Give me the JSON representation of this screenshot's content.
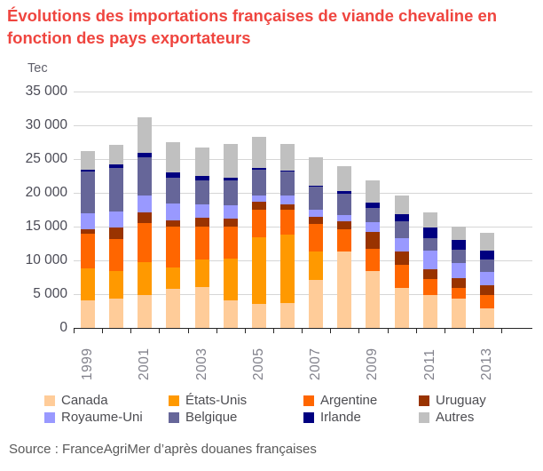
{
  "title": "Évolutions des importations françaises de viande chevaline en fonction des pays exportateurs",
  "title_lines": [
    "Évolutions des importations françaises de viande chevaline en",
    "fonction des pays exportateurs"
  ],
  "source": "Source : FranceAgriMer d’après douanes françaises",
  "colors": {
    "title": "#ef453f",
    "gridline": "#d6d6d6",
    "axis": "#262626"
  },
  "chart_data": {
    "type": "bar",
    "stacked": true,
    "title": "Évolutions des importations françaises de viande chevaline en fonction des pays exportateurs",
    "ylabel": "Tec",
    "xlabel": "",
    "ylim": [
      0,
      35000
    ],
    "grid": true,
    "legend_position": "bottom",
    "yticks": [
      {
        "value": 0,
        "label": "0"
      },
      {
        "value": 5000,
        "label": "5 000"
      },
      {
        "value": 10000,
        "label": "10 000"
      },
      {
        "value": 15000,
        "label": "15 000"
      },
      {
        "value": 20000,
        "label": "20 000"
      },
      {
        "value": 25000,
        "label": "25 000"
      },
      {
        "value": 30000,
        "label": "30 000"
      },
      {
        "value": 35000,
        "label": "35 000"
      }
    ],
    "categories": [
      "1999",
      "2000",
      "2001",
      "2002",
      "2003",
      "2004",
      "2005",
      "2006",
      "2007",
      "2008",
      "2009",
      "2010",
      "2011",
      "2012",
      "2013"
    ],
    "x_tick_labels": [
      "1999",
      "2001",
      "2003",
      "2005",
      "2007",
      "2009",
      "2011",
      "2013"
    ],
    "series": [
      {
        "name": "Canada",
        "color": "#FFCC99",
        "values": [
          4100,
          4350,
          4850,
          5750,
          6100,
          4100,
          3550,
          3650,
          7100,
          11300,
          8350,
          5950,
          4800,
          4350,
          2850
        ]
      },
      {
        "name": "États-Unis",
        "color": "#FF9900",
        "values": [
          4650,
          4000,
          4900,
          3150,
          4000,
          6200,
          9900,
          10100,
          4150,
          0,
          0,
          0,
          0,
          0,
          0
        ]
      },
      {
        "name": "Argentine",
        "color": "#FF6600",
        "values": [
          5250,
          4800,
          5800,
          6050,
          4900,
          4650,
          4000,
          3700,
          4150,
          3250,
          3350,
          3450,
          2450,
          1500,
          1950
        ]
      },
      {
        "name": "Uruguay",
        "color": "#993300",
        "values": [
          550,
          1650,
          1500,
          1000,
          1300,
          1200,
          1200,
          900,
          1050,
          1200,
          2450,
          1900,
          1450,
          1550,
          1450
        ]
      },
      {
        "name": "Royaume-Uni",
        "color": "#9999FF",
        "values": [
          2450,
          2450,
          2550,
          2450,
          2050,
          1950,
          1000,
          1200,
          1100,
          1000,
          1500,
          2050,
          2700,
          2250,
          2000
        ]
      },
      {
        "name": "Belgique",
        "color": "#666699",
        "values": [
          6100,
          6400,
          5700,
          3850,
          3550,
          3800,
          3800,
          3650,
          3400,
          3150,
          2100,
          2400,
          1850,
          1900,
          1900
        ]
      },
      {
        "name": "Irlande",
        "color": "#000080",
        "values": [
          300,
          600,
          650,
          750,
          550,
          350,
          200,
          150,
          150,
          300,
          850,
          1100,
          1650,
          1500,
          1300
        ]
      },
      {
        "name": "Autres",
        "color": "#C0C0C0",
        "values": [
          2850,
          2900,
          5300,
          4450,
          4250,
          4950,
          4700,
          3950,
          4100,
          3750,
          3250,
          2750,
          2250,
          2000,
          2650
        ]
      }
    ]
  }
}
